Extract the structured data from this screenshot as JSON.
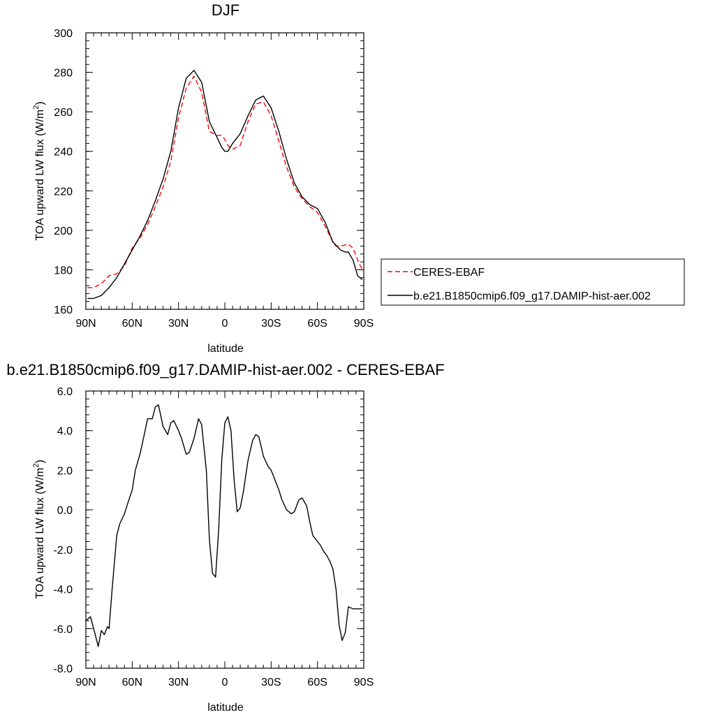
{
  "chart_data": [
    {
      "type": "line",
      "title": "DJF",
      "xlabel": "latitude",
      "ylabel": "TOA upward LW flux (W/m",
      "ylabel_sup": "2",
      "ylabel_end": ")",
      "xlim": [
        90,
        -90
      ],
      "ylim": [
        160,
        300
      ],
      "x_ticks": [
        90,
        60,
        30,
        0,
        -30,
        -60,
        -90
      ],
      "x_tick_labels": [
        "90N",
        "60N",
        "30N",
        "0",
        "30S",
        "60S",
        "90S"
      ],
      "y_ticks": [
        160,
        180,
        200,
        220,
        240,
        260,
        280,
        300
      ],
      "y_tick_labels": [
        "160",
        "180",
        "200",
        "220",
        "240",
        "260",
        "280",
        "300"
      ],
      "legend_position": "right",
      "series": [
        {
          "name": "CERES-EBAF",
          "color": "#ff0000",
          "dash": "dashed",
          "x": [
            89,
            85,
            80,
            75,
            70,
            65,
            60,
            55,
            50,
            45,
            40,
            35,
            30,
            25,
            20,
            15,
            10,
            5,
            2,
            0,
            -2,
            -5,
            -10,
            -15,
            -20,
            -25,
            -30,
            -35,
            -40,
            -45,
            -50,
            -55,
            -60,
            -65,
            -70,
            -72,
            -75,
            -80,
            -83,
            -86,
            -89
          ],
          "y": [
            171,
            171,
            173,
            177,
            178,
            182,
            191,
            196,
            203,
            212,
            222,
            235,
            257,
            272,
            278,
            270,
            250,
            248,
            248,
            246,
            243,
            241,
            243,
            255,
            264,
            265,
            258,
            245,
            232,
            222,
            216,
            212,
            209,
            202,
            194,
            192,
            192,
            193,
            191,
            185,
            180
          ]
        },
        {
          "name": "b.e21.B1850cmip6.f09_g17.DAMIP-hist-aer.002",
          "color": "#000000",
          "dash": "solid",
          "x": [
            89,
            85,
            80,
            75,
            70,
            65,
            60,
            55,
            50,
            45,
            40,
            35,
            30,
            25,
            20,
            15,
            10,
            5,
            2,
            0,
            -2,
            -5,
            -10,
            -15,
            -20,
            -25,
            -30,
            -35,
            -40,
            -45,
            -50,
            -55,
            -60,
            -65,
            -70,
            -75,
            -78,
            -80,
            -83,
            -86,
            -89
          ],
          "y": [
            165.5,
            165.5,
            167,
            171,
            176,
            183,
            190,
            197,
            205,
            215,
            226,
            240,
            262,
            277,
            281,
            275,
            255,
            247,
            242,
            240,
            240,
            244,
            249,
            258,
            266,
            268,
            262,
            250,
            236,
            224,
            217,
            213,
            211,
            204,
            194,
            190,
            189,
            189,
            185,
            177,
            175
          ]
        }
      ]
    },
    {
      "type": "line",
      "title": "b.e21.B1850cmip6.f09_g17.DAMIP-hist-aer.002 - CERES-EBAF",
      "xlabel": "latitude",
      "ylabel": "TOA upward LW flux (W/m",
      "ylabel_sup": "2",
      "ylabel_end": ")",
      "xlim": [
        90,
        -90
      ],
      "ylim": [
        -8,
        6
      ],
      "x_ticks": [
        90,
        60,
        30,
        0,
        -30,
        -60,
        -90
      ],
      "x_tick_labels": [
        "90N",
        "60N",
        "30N",
        "0",
        "30S",
        "60S",
        "90S"
      ],
      "y_ticks": [
        -8,
        -6,
        -4,
        -2,
        0,
        2,
        4,
        6
      ],
      "y_tick_labels": [
        "-8.0",
        "-6.0",
        "-4.0",
        "-2.0",
        "0.0",
        "2.0",
        "4.0",
        "6.0"
      ],
      "series": [
        {
          "color": "#000000",
          "x": [
            90,
            87,
            85,
            82,
            80,
            78,
            76,
            75,
            73,
            70,
            68,
            65,
            63,
            60,
            58,
            55,
            53,
            50,
            47,
            45,
            43,
            40,
            37,
            35,
            33,
            30,
            28,
            25,
            23,
            20,
            17,
            15,
            12,
            10,
            8,
            6,
            4,
            2,
            0,
            -2,
            -4,
            -6,
            -8,
            -10,
            -12,
            -15,
            -18,
            -20,
            -22,
            -25,
            -28,
            -30,
            -32,
            -35,
            -37,
            -40,
            -43,
            -45,
            -48,
            -50,
            -53,
            -55,
            -57,
            -60,
            -62,
            -64,
            -66,
            -68,
            -70,
            -72,
            -74,
            -76,
            -78,
            -80,
            -83,
            -85,
            -87,
            -89
          ],
          "y": [
            -5.6,
            -5.4,
            -6.0,
            -6.9,
            -6.1,
            -6.3,
            -5.9,
            -6.0,
            -4.0,
            -1.3,
            -0.7,
            -0.2,
            0.3,
            1.0,
            2.0,
            2.8,
            3.5,
            4.6,
            4.6,
            5.2,
            5.3,
            4.2,
            3.8,
            4.4,
            4.5,
            4.0,
            3.6,
            2.8,
            2.9,
            3.6,
            4.6,
            4.3,
            2.0,
            -1.5,
            -3.2,
            -3.4,
            -1.0,
            2.5,
            4.4,
            4.7,
            4.0,
            1.5,
            -0.1,
            0.1,
            0.9,
            2.5,
            3.5,
            3.8,
            3.7,
            2.7,
            2.2,
            2.0,
            1.6,
            1.0,
            0.5,
            0.0,
            -0.2,
            -0.1,
            0.5,
            0.6,
            0.2,
            -0.6,
            -1.3,
            -1.6,
            -1.8,
            -2.1,
            -2.3,
            -2.6,
            -3.0,
            -4.0,
            -5.8,
            -6.6,
            -6.2,
            -4.9,
            -5.0,
            -5.0,
            -5.0,
            -5.0
          ]
        }
      ]
    }
  ]
}
